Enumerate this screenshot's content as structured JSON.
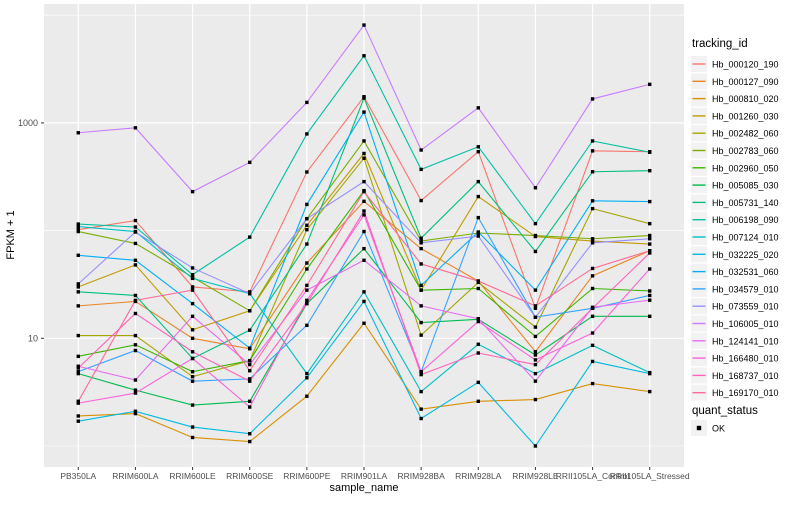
{
  "chart_data": {
    "type": "line",
    "title": "",
    "xlabel": "sample_name",
    "ylabel": "FPKM + 1",
    "y_scale": "log10",
    "y_tick_labels": [
      "10",
      "1000"
    ],
    "y_ticks": [
      10,
      1000
    ],
    "y_minor_gridlines": [
      1,
      100,
      10000
    ],
    "ylim": [
      0.74,
      12000
    ],
    "grid": "on",
    "legend_position": "right",
    "legend_title": "tracking_id",
    "panel_background": "#EBEBEB",
    "gridline_color": "#FFFFFF",
    "point_color": "#000000",
    "point_shape": "square",
    "tick_label_color": "#4D4D4D",
    "categories": [
      "PB350LA",
      "RRIM600LA",
      "RRIM600LE",
      "RRIM600SE",
      "RRIM600PE",
      "RRIM901LA",
      "RRIM928BA",
      "RRIM928LA",
      "RRIM928LE",
      "RRII105LA_Control",
      "RRII105LA_Stressed"
    ],
    "series": [
      {
        "name": "Hb_000120_190",
        "color": "#F8766D",
        "values": [
          102,
          124,
          30,
          27,
          350,
          1750,
          190,
          540,
          19,
          550,
          540
        ]
      },
      {
        "name": "Hb_000127_090",
        "color": "#E88526",
        "values": [
          20,
          22,
          10,
          8,
          50,
          187,
          68,
          34,
          7.5,
          38,
          65
        ]
      },
      {
        "name": "Hb_000810_020",
        "color": "#D89000",
        "values": [
          1.9,
          2.0,
          1.2,
          1.1,
          2.9,
          13.8,
          2.2,
          2.6,
          2.7,
          3.8,
          3.2
        ]
      },
      {
        "name": "Hb_001260_030",
        "color": "#C09B00",
        "values": [
          30,
          48,
          12,
          18,
          112,
          520,
          28,
          207,
          88,
          80,
          75
        ]
      },
      {
        "name": "Hb_002482_060",
        "color": "#A3A500",
        "values": [
          10.6,
          10.6,
          4.4,
          6.2,
          102,
          470,
          10.7,
          33,
          12.7,
          160,
          116
        ]
      },
      {
        "name": "Hb_002783_060",
        "color": "#7CAE00",
        "values": [
          98,
          76,
          37,
          18,
          129,
          680,
          80,
          95,
          90,
          84,
          90
        ]
      },
      {
        "name": "Hb_002960_050",
        "color": "#39B600",
        "values": [
          6.8,
          8.7,
          4.9,
          6.2,
          44,
          235,
          28,
          29,
          10.4,
          29,
          27.5
        ]
      },
      {
        "name": "Hb_005085_030",
        "color": "#00BB4E",
        "values": [
          4.7,
          3.3,
          2.4,
          2.6,
          21,
          68,
          14,
          15,
          7,
          16,
          16
        ]
      },
      {
        "name": "Hb_005731_140",
        "color": "#00BF7D",
        "values": [
          27,
          25,
          6.5,
          11.9,
          75,
          1700,
          85,
          285,
          64,
          352,
          360
        ]
      },
      {
        "name": "Hb_006198_090",
        "color": "#00C1A3",
        "values": [
          115,
          108,
          39,
          87,
          790,
          4200,
          370,
          600,
          116,
          680,
          534
        ]
      },
      {
        "name": "Hb_007124_010",
        "color": "#00BFC4",
        "values": [
          109,
          98,
          36,
          26,
          4.7,
          27,
          3.2,
          8.8,
          4.7,
          8.6,
          4.8
        ]
      },
      {
        "name": "Hb_032225_020",
        "color": "#00BAE0",
        "values": [
          1.7,
          2.1,
          1.5,
          1.3,
          4.3,
          22,
          1.8,
          3.9,
          1.0,
          6.1,
          4.7
        ]
      },
      {
        "name": "Hb_032531_060",
        "color": "#00B0F6",
        "values": [
          59,
          53,
          21,
          8.1,
          175,
          1260,
          31,
          97,
          28,
          189,
          186
        ]
      },
      {
        "name": "Hb_034579_010",
        "color": "#35A2FF",
        "values": [
          4.9,
          7.7,
          4.0,
          4.2,
          13.2,
          98,
          4.9,
          132,
          15.7,
          19,
          25
        ]
      },
      {
        "name": "Hb_073559_010",
        "color": "#9590FF",
        "values": [
          32,
          97,
          45,
          26,
          129,
          285,
          77,
          89,
          15.7,
          77,
          84
        ]
      },
      {
        "name": "Hb_106005_010",
        "color": "#C77CFF",
        "values": [
          810,
          900,
          230,
          430,
          1550,
          8100,
          560,
          1380,
          250,
          1670,
          2280
        ]
      },
      {
        "name": "Hb_124141_010",
        "color": "#E76BF3",
        "values": [
          5.5,
          4.1,
          16,
          5.7,
          28,
          53,
          20,
          15.2,
          4.0,
          19.4,
          22.6
        ]
      },
      {
        "name": "Hb_166480_010",
        "color": "#FA62DB",
        "values": [
          2.5,
          3.1,
          6.5,
          2.3,
          22.5,
          140,
          4.9,
          14.3,
          6.3,
          11.2,
          44
        ]
      },
      {
        "name": "Hb_168737_010",
        "color": "#FF62BC",
        "values": [
          5.3,
          17,
          7.5,
          4.0,
          21,
          152,
          4.6,
          7.3,
          5.7,
          19,
          62
        ]
      },
      {
        "name": "Hb_169170_010",
        "color": "#FF6A98",
        "values": [
          2.6,
          22.5,
          28,
          5.0,
          31,
          230,
          49,
          34,
          20,
          44.5,
          65
        ]
      }
    ],
    "quant_status": {
      "title": "quant_status",
      "label": "OK"
    }
  }
}
